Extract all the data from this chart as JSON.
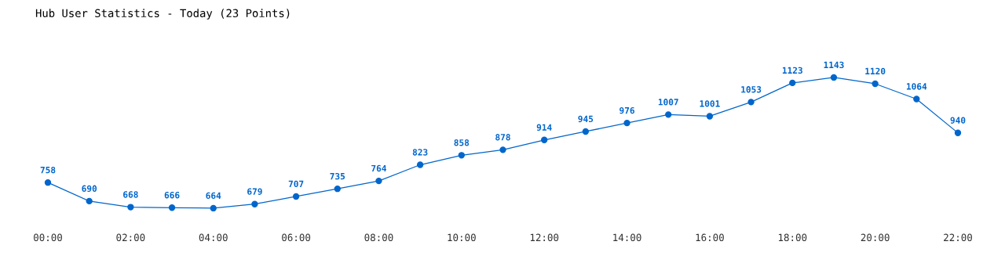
{
  "chart_data": {
    "type": "line",
    "title": "Hub User Statistics - Today (23 Points)",
    "x": [
      0,
      1,
      2,
      3,
      4,
      5,
      6,
      7,
      8,
      9,
      10,
      11,
      12,
      13,
      14,
      15,
      16,
      17,
      18,
      19,
      20,
      21,
      22
    ],
    "series": [
      {
        "color": "#0066cc",
        "values": [
          758,
          690,
          668,
          666,
          664,
          679,
          707,
          735,
          764,
          823,
          858,
          878,
          914,
          945,
          976,
          1007,
          1001,
          1053,
          1123,
          1143,
          1120,
          1064,
          940
        ]
      }
    ],
    "xlim": [
      0,
      22
    ],
    "xticks": [
      {
        "value": 0,
        "label": "00:00"
      },
      {
        "value": 2,
        "label": "02:00"
      },
      {
        "value": 4,
        "label": "04:00"
      },
      {
        "value": 6,
        "label": "06:00"
      },
      {
        "value": 8,
        "label": "08:00"
      },
      {
        "value": 10,
        "label": "10:00"
      },
      {
        "value": 12,
        "label": "12:00"
      },
      {
        "value": 14,
        "label": "14:00"
      },
      {
        "value": 16,
        "label": "16:00"
      },
      {
        "value": 18,
        "label": "18:00"
      },
      {
        "value": 20,
        "label": "20:00"
      },
      {
        "value": 22,
        "label": "22:00"
      }
    ],
    "tick_labels": "x",
    "data_labels": true,
    "marker": "circle",
    "line_style": "solid",
    "grid": false,
    "legend": false
  }
}
